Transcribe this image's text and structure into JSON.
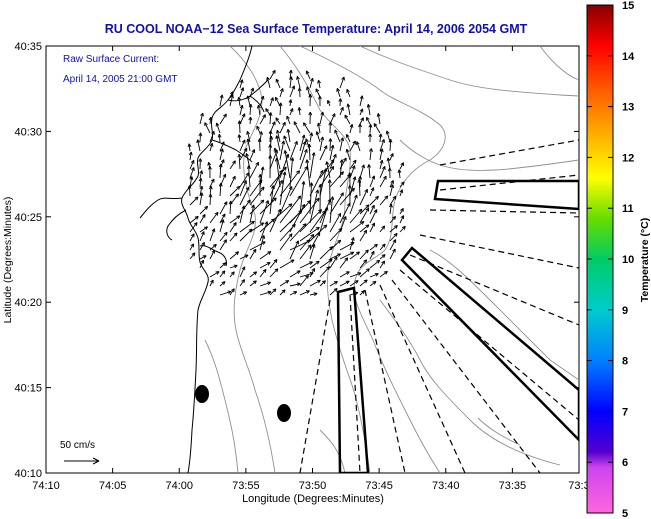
{
  "title": "RU COOL  NOAA−12  Sea Surface Temperature:  April 14, 2006 2054 GMT",
  "annotation": {
    "line1": "Raw Surface Current:",
    "line2": "April 14, 2005 21:00 GMT"
  },
  "scale_label": "50 cm/s",
  "x_axis": {
    "label": "Longitude (Degrees:Minutes)",
    "ticks": [
      "74:10",
      "74:05",
      "74:00",
      "73:55",
      "73:50",
      "73:45",
      "73:40",
      "73:35",
      "73:3"
    ]
  },
  "y_axis": {
    "label": "Latitude (Degrees:Minutes)",
    "ticks": [
      "40:35",
      "40:30",
      "40:25",
      "40:20",
      "40:15",
      "40:10"
    ]
  },
  "colorbar": {
    "label": "Temperature (°C)",
    "ticks": [
      "15",
      "14",
      "13",
      "12",
      "11",
      "10",
      "9",
      "8",
      "7",
      "6",
      "5"
    ],
    "colors": [
      "#ff66cc",
      "#6600cc",
      "#0000ff",
      "#0080ff",
      "#00cccc",
      "#00cc66",
      "#66dd00",
      "#ffff00",
      "#ffaa00",
      "#ff5500",
      "#ff0000",
      "#cc0000",
      "#880000"
    ]
  }
}
